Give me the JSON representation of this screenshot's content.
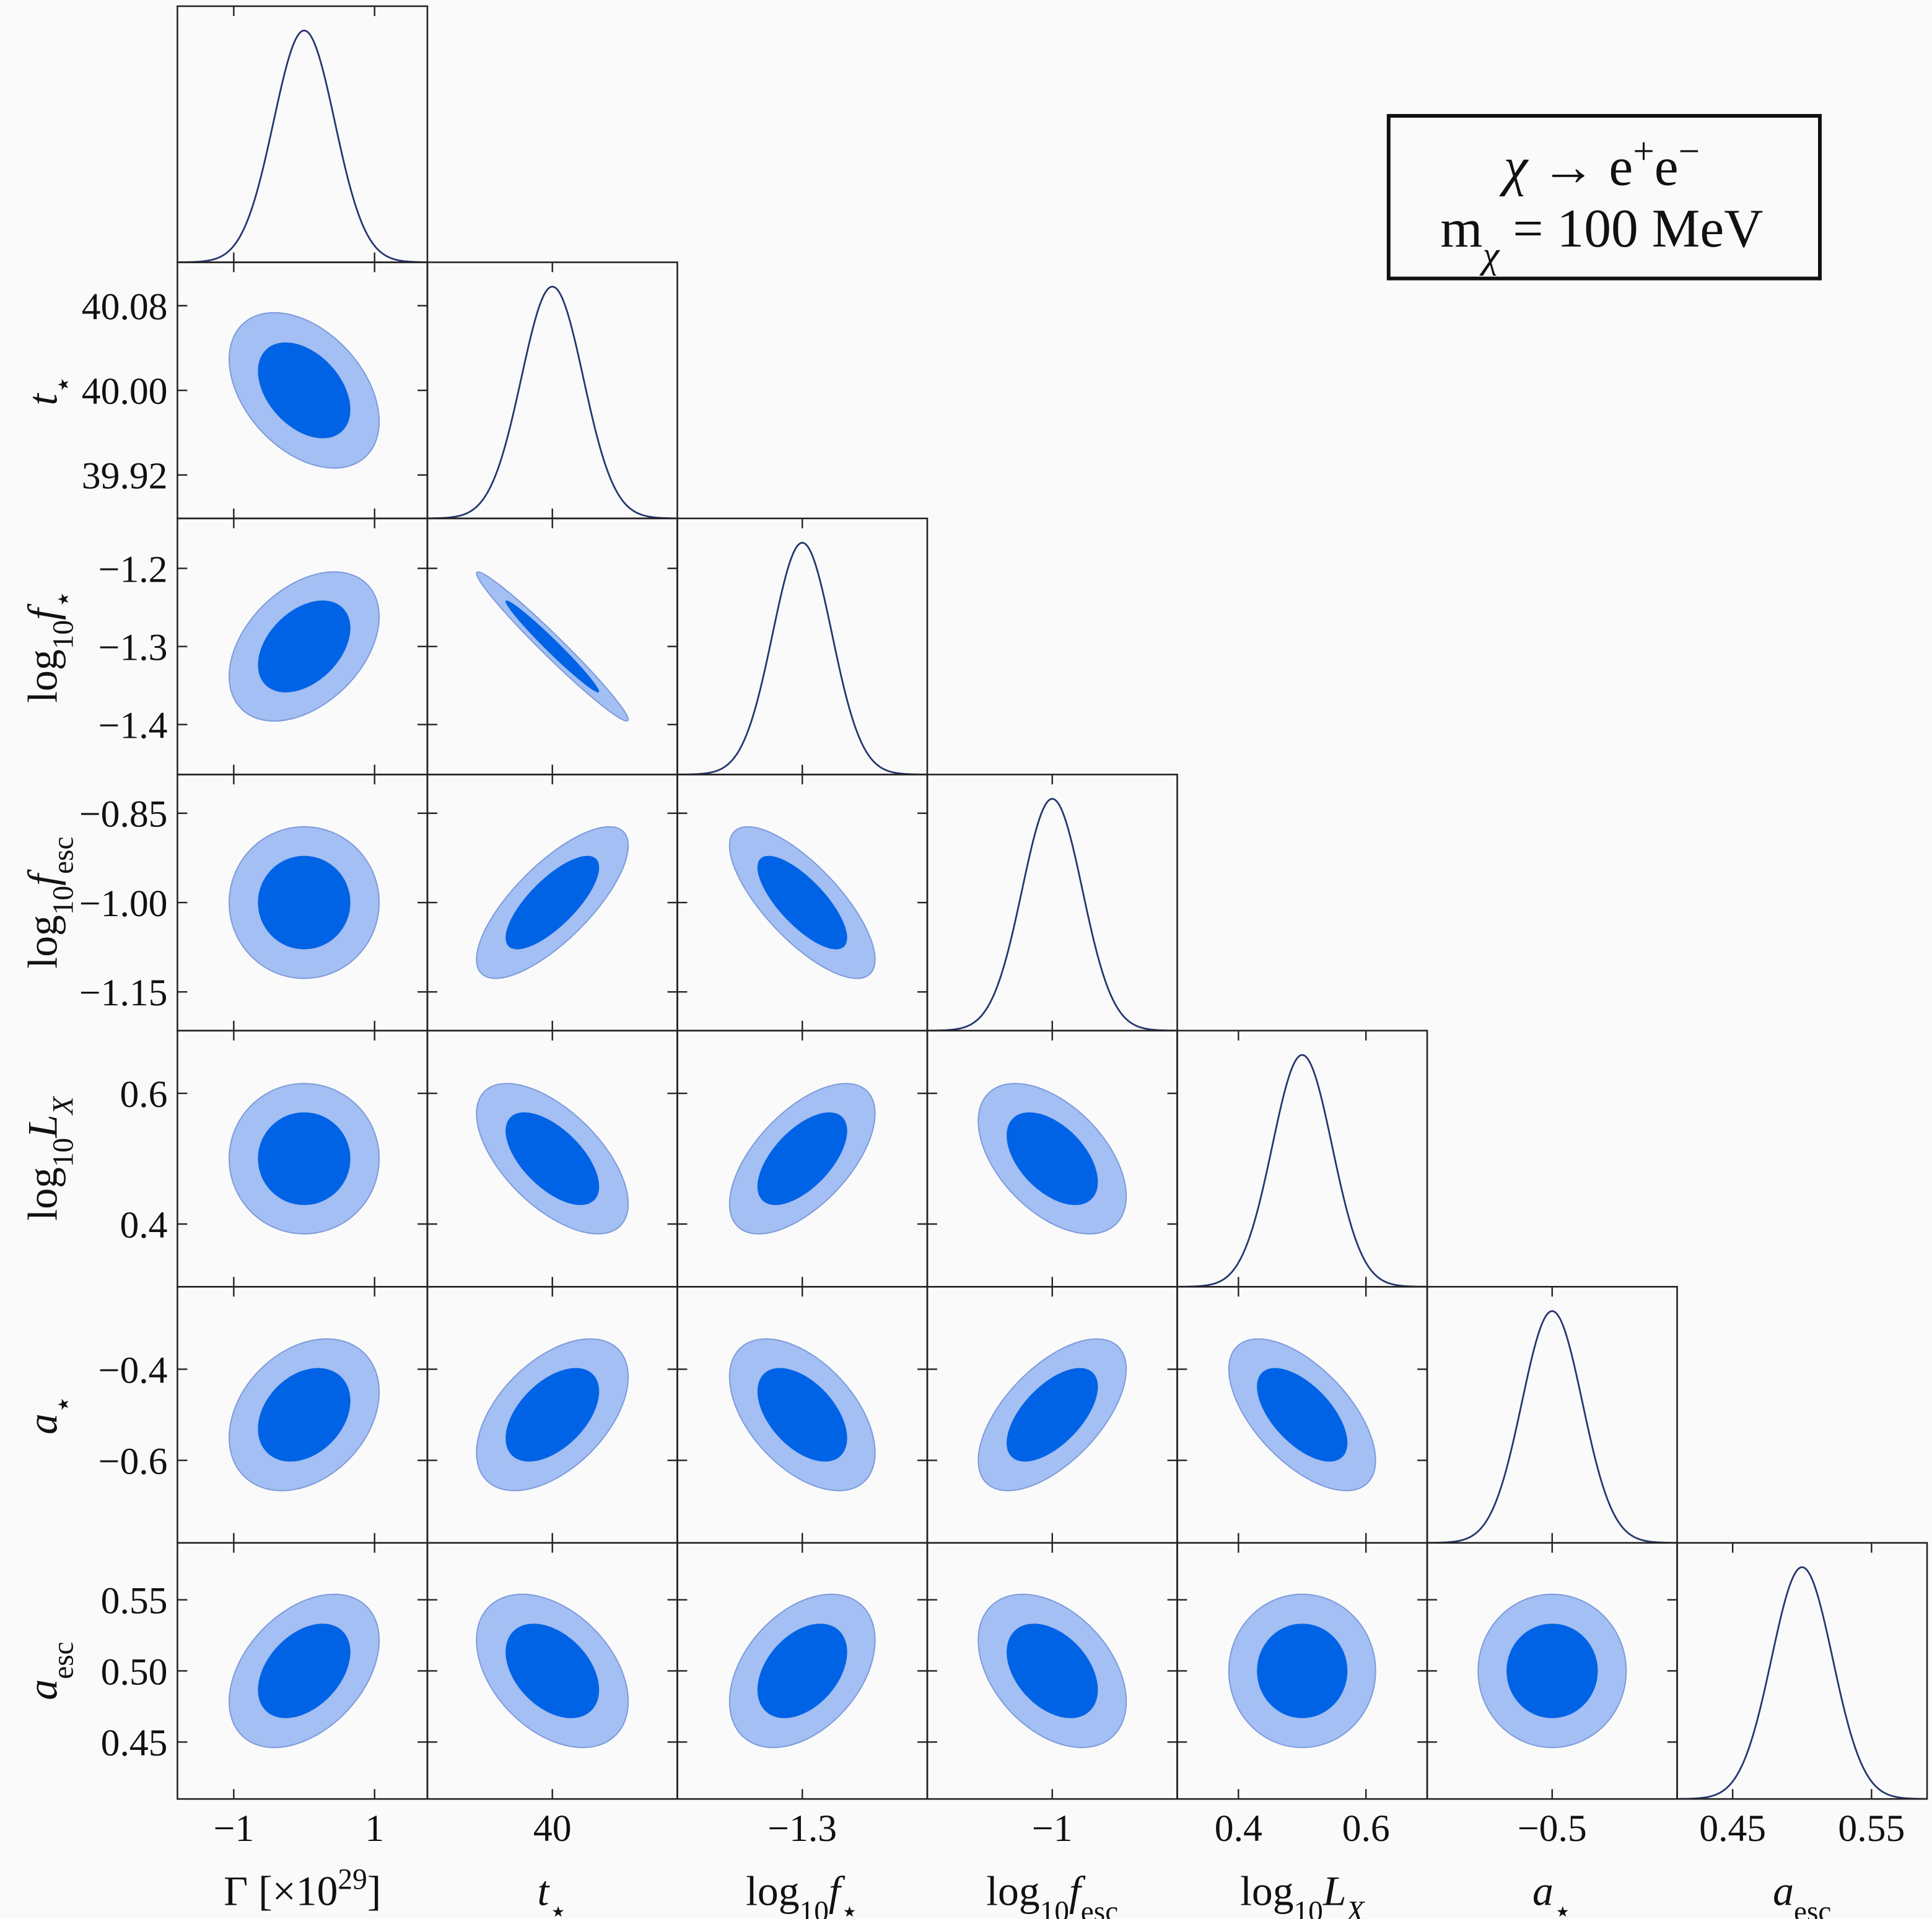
{
  "chart_data": {
    "type": "corner",
    "legend": [
      [
        {
          "text": "χ",
          "italic": true
        },
        {
          "text": " → e"
        },
        {
          "text": "+",
          "sup": true
        },
        {
          "text": "e"
        },
        {
          "text": "−",
          "sup": true
        }
      ],
      [
        {
          "text": "m"
        },
        {
          "text": "χ",
          "sub": true,
          "italic": true
        },
        {
          "text": " = 100 MeV"
        }
      ]
    ],
    "contour_levels": [
      0.68,
      0.95
    ],
    "fill_colors": [
      "#0063e5",
      "#a4bff3"
    ],
    "line_color": "#26376e",
    "params": [
      {
        "label": [
          {
            "text": "Γ [×10"
          },
          {
            "text": "29",
            "sup": true
          },
          {
            "text": "]"
          }
        ],
        "mean": 0,
        "sigma": 0.435,
        "lim": [
          -1.8,
          1.75
        ],
        "xticks": [
          {
            "value": -1,
            "label": "−1"
          },
          1
        ]
      },
      {
        "label": [
          {
            "text": "t",
            "italic": true
          },
          {
            "text": "⋆",
            "sub": true
          }
        ],
        "mean": 40,
        "sigma": 0.03,
        "lim": [
          39.879,
          40.121
        ],
        "xticks": [
          40
        ],
        "yticks": [
          40.08,
          {
            "value": 40,
            "label": "40.00"
          },
          39.92
        ]
      },
      {
        "label": [
          {
            "text": "log"
          },
          {
            "text": "10",
            "sub": true
          },
          {
            "text": "f",
            "italic": true
          },
          {
            "text": "⋆",
            "sub": true
          }
        ],
        "mean": -1.3,
        "sigma": 0.039,
        "lim": [
          -1.464,
          -1.136
        ],
        "xticks": [
          {
            "value": -1.3,
            "label": "−1.3"
          }
        ],
        "yticks": [
          {
            "value": -1.2,
            "label": "−1.2"
          },
          {
            "value": -1.3,
            "label": "−1.3"
          },
          {
            "value": -1.4,
            "label": "−1.4"
          }
        ]
      },
      {
        "label": [
          {
            "text": "log"
          },
          {
            "text": "10",
            "sub": true
          },
          {
            "text": "f",
            "italic": true
          },
          {
            "text": "esc",
            "sub": true
          }
        ],
        "mean": -1.0,
        "sigma": 0.052,
        "lim": [
          -1.215,
          -0.785
        ],
        "xticks": [
          {
            "value": -1,
            "label": "−1"
          }
        ],
        "yticks": [
          {
            "value": -0.85,
            "label": "−0.85"
          },
          {
            "value": -1,
            "label": "−1.00"
          },
          {
            "value": -1.15,
            "label": "−1.15"
          }
        ]
      },
      {
        "label": [
          {
            "text": "log"
          },
          {
            "text": "10",
            "sub": true
          },
          {
            "text": "L",
            "italic": true
          },
          {
            "text": "X",
            "sub": true,
            "italic": true
          }
        ],
        "mean": 0.5,
        "sigma": 0.047,
        "lim": [
          0.304,
          0.696
        ],
        "xticks": [
          0.4,
          0.6
        ],
        "yticks": [
          0.6,
          0.4
        ]
      },
      {
        "label": [
          {
            "text": "a",
            "italic": true
          },
          {
            "text": "⋆",
            "sub": true
          }
        ],
        "mean": -0.5,
        "sigma": 0.068,
        "lim": [
          -0.781,
          -0.219
        ],
        "xticks": [
          {
            "value": -0.5,
            "label": "−0.5"
          }
        ],
        "yticks": [
          {
            "value": -0.4,
            "label": "−0.4"
          },
          {
            "value": -0.6,
            "label": "−0.6"
          }
        ]
      },
      {
        "label": [
          {
            "text": "a",
            "italic": true
          },
          {
            "text": "esc",
            "sub": true
          }
        ],
        "mean": 0.5,
        "sigma": 0.022,
        "lim": [
          0.41,
          0.59
        ],
        "xticks": [
          0.45,
          0.55
        ],
        "yticks": [
          0.55,
          {
            "value": 0.5,
            "label": "0.50"
          },
          0.45
        ]
      }
    ],
    "correlations": [
      [
        -0.4
      ],
      [
        0.4,
        -0.98
      ],
      [
        0,
        0.75,
        -0.75
      ],
      [
        0,
        -0.6,
        0.6,
        -0.5
      ],
      [
        0.3,
        0.5,
        -0.5,
        0.6,
        -0.6
      ],
      [
        0.4,
        -0.4,
        0.4,
        -0.4,
        0,
        0
      ]
    ]
  }
}
